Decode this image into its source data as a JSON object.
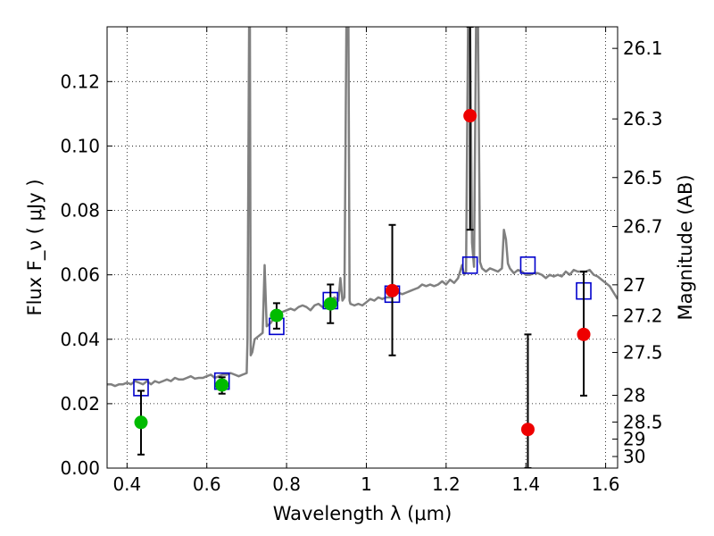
{
  "chart_data": {
    "type": "scatter",
    "xlabel": "Wavelength  λ (μm)",
    "ylabel": "Flux  F_ν  ( μJy )",
    "ylabel_right": "Magnitude (AB)",
    "xlim": [
      0.35,
      1.63
    ],
    "ylim": [
      0.0,
      0.137
    ],
    "grid": true,
    "x_ticks": [
      {
        "value": 0.4,
        "label": "0.4"
      },
      {
        "value": 0.6,
        "label": "0.6"
      },
      {
        "value": 0.8,
        "label": "0.8"
      },
      {
        "value": 1.0,
        "label": "1"
      },
      {
        "value": 1.2,
        "label": "1.2"
      },
      {
        "value": 1.4,
        "label": "1.4"
      },
      {
        "value": 1.6,
        "label": "1.6"
      }
    ],
    "y_ticks": [
      {
        "value": 0.0,
        "label": "0.00"
      },
      {
        "value": 0.02,
        "label": "0.02"
      },
      {
        "value": 0.04,
        "label": "0.04"
      },
      {
        "value": 0.06,
        "label": "0.06"
      },
      {
        "value": 0.08,
        "label": "0.08"
      },
      {
        "value": 0.1,
        "label": "0.10"
      },
      {
        "value": 0.12,
        "label": "0.12"
      }
    ],
    "right_ticks": [
      {
        "label": "26.1",
        "flux": 0.1303
      },
      {
        "label": "26.3",
        "flux": 0.1084
      },
      {
        "label": "26.5",
        "flux": 0.0902
      },
      {
        "label": "26.7",
        "flux": 0.075
      },
      {
        "label": "27",
        "flux": 0.0569
      },
      {
        "label": "27.2",
        "flux": 0.0473
      },
      {
        "label": "27.5",
        "flux": 0.0359
      },
      {
        "label": "28",
        "flux": 0.0226
      },
      {
        "label": "28.5",
        "flux": 0.0143
      },
      {
        "label": "29",
        "flux": 0.009
      },
      {
        "label": "30",
        "flux": 0.0036
      }
    ],
    "model_spectrum": {
      "color": "#808080",
      "x": [
        0.35,
        0.36,
        0.37,
        0.38,
        0.39,
        0.4,
        0.41,
        0.42,
        0.43,
        0.44,
        0.45,
        0.46,
        0.47,
        0.48,
        0.49,
        0.5,
        0.51,
        0.52,
        0.53,
        0.54,
        0.55,
        0.56,
        0.57,
        0.58,
        0.59,
        0.6,
        0.61,
        0.62,
        0.63,
        0.64,
        0.65,
        0.66,
        0.67,
        0.68,
        0.69,
        0.7,
        0.702,
        0.706,
        0.708,
        0.71,
        0.714,
        0.72,
        0.73,
        0.74,
        0.745,
        0.75,
        0.76,
        0.77,
        0.78,
        0.79,
        0.8,
        0.81,
        0.82,
        0.83,
        0.84,
        0.85,
        0.86,
        0.87,
        0.88,
        0.89,
        0.9,
        0.91,
        0.92,
        0.93,
        0.935,
        0.94,
        0.945,
        0.95,
        0.952,
        0.955,
        0.958,
        0.96,
        0.97,
        0.98,
        0.99,
        1.0,
        1.01,
        1.02,
        1.03,
        1.04,
        1.05,
        1.06,
        1.07,
        1.08,
        1.09,
        1.1,
        1.11,
        1.12,
        1.13,
        1.14,
        1.15,
        1.16,
        1.17,
        1.18,
        1.19,
        1.2,
        1.21,
        1.22,
        1.23,
        1.24,
        1.245,
        1.25,
        1.255,
        1.26,
        1.265,
        1.27,
        1.275,
        1.28,
        1.285,
        1.29,
        1.3,
        1.31,
        1.32,
        1.33,
        1.34,
        1.345,
        1.35,
        1.355,
        1.36,
        1.37,
        1.38,
        1.39,
        1.4,
        1.41,
        1.42,
        1.43,
        1.44,
        1.45,
        1.46,
        1.47,
        1.48,
        1.49,
        1.5,
        1.51,
        1.52,
        1.53,
        1.54,
        1.55,
        1.56,
        1.57,
        1.58,
        1.59,
        1.6,
        1.61,
        1.62,
        1.63
      ],
      "y": [
        0.026,
        0.026,
        0.0255,
        0.026,
        0.026,
        0.0265,
        0.026,
        0.027,
        0.0265,
        0.026,
        0.027,
        0.026,
        0.027,
        0.0265,
        0.027,
        0.0275,
        0.027,
        0.028,
        0.0275,
        0.0275,
        0.028,
        0.0285,
        0.0278,
        0.028,
        0.028,
        0.0285,
        0.029,
        0.028,
        0.0285,
        0.029,
        0.029,
        0.0295,
        0.029,
        0.0285,
        0.029,
        0.0295,
        0.04,
        0.137,
        0.137,
        0.035,
        0.036,
        0.04,
        0.041,
        0.042,
        0.063,
        0.044,
        0.045,
        0.047,
        0.048,
        0.0485,
        0.049,
        0.0495,
        0.049,
        0.05,
        0.0505,
        0.05,
        0.049,
        0.0505,
        0.051,
        0.05,
        0.0505,
        0.0515,
        0.053,
        0.052,
        0.059,
        0.052,
        0.053,
        0.137,
        0.137,
        0.137,
        0.052,
        0.051,
        0.0505,
        0.051,
        0.0505,
        0.0515,
        0.0525,
        0.052,
        0.053,
        0.0525,
        0.053,
        0.053,
        0.0535,
        0.0545,
        0.054,
        0.0545,
        0.055,
        0.0555,
        0.056,
        0.057,
        0.0565,
        0.057,
        0.0565,
        0.057,
        0.058,
        0.057,
        0.0585,
        0.0575,
        0.059,
        0.063,
        0.06,
        0.061,
        0.137,
        0.137,
        0.07,
        0.0625,
        0.137,
        0.137,
        0.064,
        0.062,
        0.061,
        0.062,
        0.0615,
        0.061,
        0.062,
        0.074,
        0.071,
        0.0635,
        0.062,
        0.0605,
        0.0615,
        0.061,
        0.06,
        0.06,
        0.0605,
        0.0605,
        0.06,
        0.059,
        0.06,
        0.0595,
        0.06,
        0.0595,
        0.061,
        0.06,
        0.0615,
        0.061,
        0.061,
        0.061,
        0.0615,
        0.06,
        0.0595,
        0.0585,
        0.0575,
        0.0565,
        0.0545,
        0.0525
      ]
    },
    "model_photometry": {
      "marker": "open-square",
      "color": "#0000cc",
      "x": [
        0.435,
        0.638,
        0.775,
        0.91,
        1.065,
        1.26,
        1.405,
        1.545
      ],
      "y": [
        0.025,
        0.027,
        0.044,
        0.052,
        0.054,
        0.063,
        0.063,
        0.055
      ]
    },
    "detections": {
      "marker": "filled-circle",
      "color": "#00bb00",
      "x": [
        0.435,
        0.638,
        0.775,
        0.91
      ],
      "y": [
        0.0142,
        0.0258,
        0.0474,
        0.051
      ],
      "err_low": [
        0.0042,
        0.0231,
        0.0433,
        0.045
      ],
      "err_high": [
        0.024,
        0.0282,
        0.0512,
        0.057
      ]
    },
    "nondetections": {
      "marker": "filled-circle",
      "color": "#ee0000",
      "x": [
        1.065,
        1.26,
        1.405,
        1.545
      ],
      "y": [
        0.0551,
        0.1094,
        0.012,
        0.0415
      ],
      "err_low": [
        0.035,
        0.074,
        0.0,
        0.0225
      ],
      "err_high": [
        0.0755,
        0.137,
        0.0415,
        0.061
      ]
    }
  }
}
